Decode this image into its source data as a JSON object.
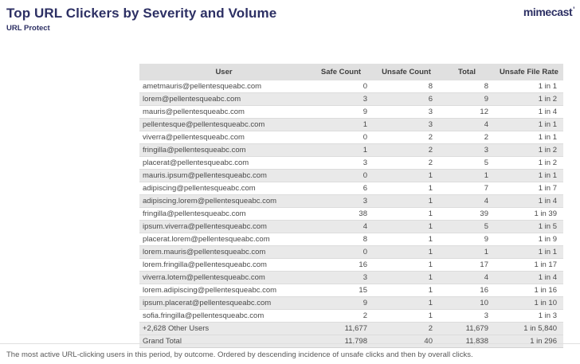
{
  "header": {
    "title": "Top URL Clickers by Severity and Volume",
    "subtitle": "URL Protect"
  },
  "logo": {
    "text": "mimecast",
    "mark": "'"
  },
  "colors": {
    "brand_navy": "#2d3064",
    "header_row_bg": "#e0e0e0",
    "stripe_row_bg": "#e9e9e9",
    "body_text": "#4a4a4a"
  },
  "chart_data": {
    "type": "table",
    "title": "Top URL Clickers by Severity and Volume",
    "columns": [
      "User",
      "Safe Count",
      "Unsafe Count",
      "Total",
      "Unsafe File Rate"
    ],
    "rows": [
      {
        "type": "data",
        "cells": [
          "ametmauris@pellentesqueabc.com",
          "0",
          "8",
          "8",
          "1 in 1"
        ]
      },
      {
        "type": "data",
        "cells": [
          "lorem@pellentesqueabc.com",
          "3",
          "6",
          "9",
          "1 in 2"
        ]
      },
      {
        "type": "data",
        "cells": [
          "mauris@pellentesqueabc.com",
          "9",
          "3",
          "12",
          "1 in 4"
        ]
      },
      {
        "type": "data",
        "cells": [
          "pellentesque@pellentesqueabc.com",
          "1",
          "3",
          "4",
          "1 in 1"
        ]
      },
      {
        "type": "data",
        "cells": [
          "viverra@pellentesqueabc.com",
          "0",
          "2",
          "2",
          "1 in 1"
        ]
      },
      {
        "type": "data",
        "cells": [
          "fringilla@pellentesqueabc.com",
          "1",
          "2",
          "3",
          "1 in 2"
        ]
      },
      {
        "type": "data",
        "cells": [
          "placerat@pellentesqueabc.com",
          "3",
          "2",
          "5",
          "1 in 2"
        ]
      },
      {
        "type": "data",
        "cells": [
          "mauris.ipsum@pellentesqueabc.com",
          "0",
          "1",
          "1",
          "1 in 1"
        ]
      },
      {
        "type": "data",
        "cells": [
          "adipiscing@pellentesqueabc.com",
          "6",
          "1",
          "7",
          "1 in 7"
        ]
      },
      {
        "type": "data",
        "cells": [
          "adipiscing.lorem@pellentesqueabc.com",
          "3",
          "1",
          "4",
          "1 in 4"
        ]
      },
      {
        "type": "data",
        "cells": [
          "fringilla@pellentesqueabc.com",
          "38",
          "1",
          "39",
          "1 in 39"
        ]
      },
      {
        "type": "data",
        "cells": [
          "ipsum.viverra@pellentesqueabc.com",
          "4",
          "1",
          "5",
          "1 in 5"
        ]
      },
      {
        "type": "data",
        "cells": [
          "placerat.lorem@pellentesqueabc.com",
          "8",
          "1",
          "9",
          "1 in 9"
        ]
      },
      {
        "type": "data",
        "cells": [
          "lorem.mauris@pellentesqueabc.com",
          "0",
          "1",
          "1",
          "1 in 1"
        ]
      },
      {
        "type": "data",
        "cells": [
          "lorem.fringilla@pellentesqueabc.com",
          "16",
          "1",
          "17",
          "1 in 17"
        ]
      },
      {
        "type": "data",
        "cells": [
          "viverra.lotem@pellentesqueabc.com",
          "3",
          "1",
          "4",
          "1 in 4"
        ]
      },
      {
        "type": "data",
        "cells": [
          "lorem.adipiscing@pellentesqueabc.com",
          "15",
          "1",
          "16",
          "1 in 16"
        ]
      },
      {
        "type": "data",
        "cells": [
          "ipsum.placerat@pellentesqueabc.com",
          "9",
          "1",
          "10",
          "1 in 10"
        ]
      },
      {
        "type": "data",
        "cells": [
          "sofia.fringilla@pellentesqueabc.com",
          "2",
          "1",
          "3",
          "1 in 3"
        ]
      },
      {
        "type": "summary",
        "cells": [
          "+2,628 Other Users",
          "11,677",
          "2",
          "11,679",
          "1 in 5,840"
        ]
      },
      {
        "type": "summary",
        "cells": [
          "Grand Total",
          "11,798",
          "40",
          "11,838",
          "1 in 296"
        ]
      }
    ]
  },
  "footer": {
    "note": "The most active URL-clicking users in this period, by outcome. Ordered by descending incidence of unsafe clicks and then by overall clicks."
  }
}
